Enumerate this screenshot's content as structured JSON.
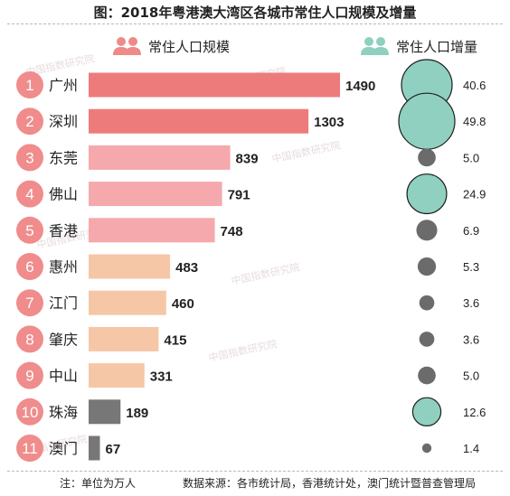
{
  "title": "图：2018年粤港澳大湾区各城市常住人口规模及增量",
  "legend": {
    "scale": "常住人口规模",
    "increment": "常住人口增量"
  },
  "watermark": "中国指数研究院",
  "footer": {
    "note": "注：单位为万人",
    "source": "数据来源：各市统计局，香港统计处，澳门统计暨普查管理局"
  },
  "chart_data": {
    "type": "bar",
    "categories": [
      "广州",
      "深圳",
      "东莞",
      "佛山",
      "香港",
      "惠州",
      "江门",
      "肇庆",
      "中山",
      "珠海",
      "澳门"
    ],
    "ranks": [
      "1",
      "2",
      "3",
      "4",
      "5",
      "6",
      "7",
      "8",
      "9",
      "10",
      "11"
    ],
    "series": [
      {
        "name": "常住人口规模",
        "values": [
          1490,
          1303,
          839,
          791,
          748,
          483,
          460,
          415,
          331,
          189,
          67
        ]
      },
      {
        "name": "常住人口增量",
        "values": [
          40.6,
          49.8,
          5.0,
          24.9,
          6.9,
          5.3,
          3.6,
          3.6,
          5.0,
          12.6,
          1.4
        ]
      }
    ],
    "value_labels": {
      "scale": [
        "1490",
        "1303",
        "839",
        "791",
        "748",
        "483",
        "460",
        "415",
        "331",
        "189",
        "67"
      ],
      "increment": [
        "40.6",
        "49.8",
        "5.0",
        "24.9",
        "6.9",
        "5.3",
        "3.6",
        "3.6",
        "5.0",
        "12.6",
        "1.4"
      ]
    },
    "bar_colors": [
      "#ee7b7b",
      "#ee7b7b",
      "#f5a9ad",
      "#f5a9ad",
      "#f5a9ad",
      "#f6c7a6",
      "#f6c7a6",
      "#f6c7a6",
      "#f6c7a6",
      "#777777",
      "#777777"
    ],
    "rank_color": "#f08c8c",
    "bubble_colors": {
      "large": "#8fd0c0",
      "small": "#6b6b6b"
    }
  }
}
